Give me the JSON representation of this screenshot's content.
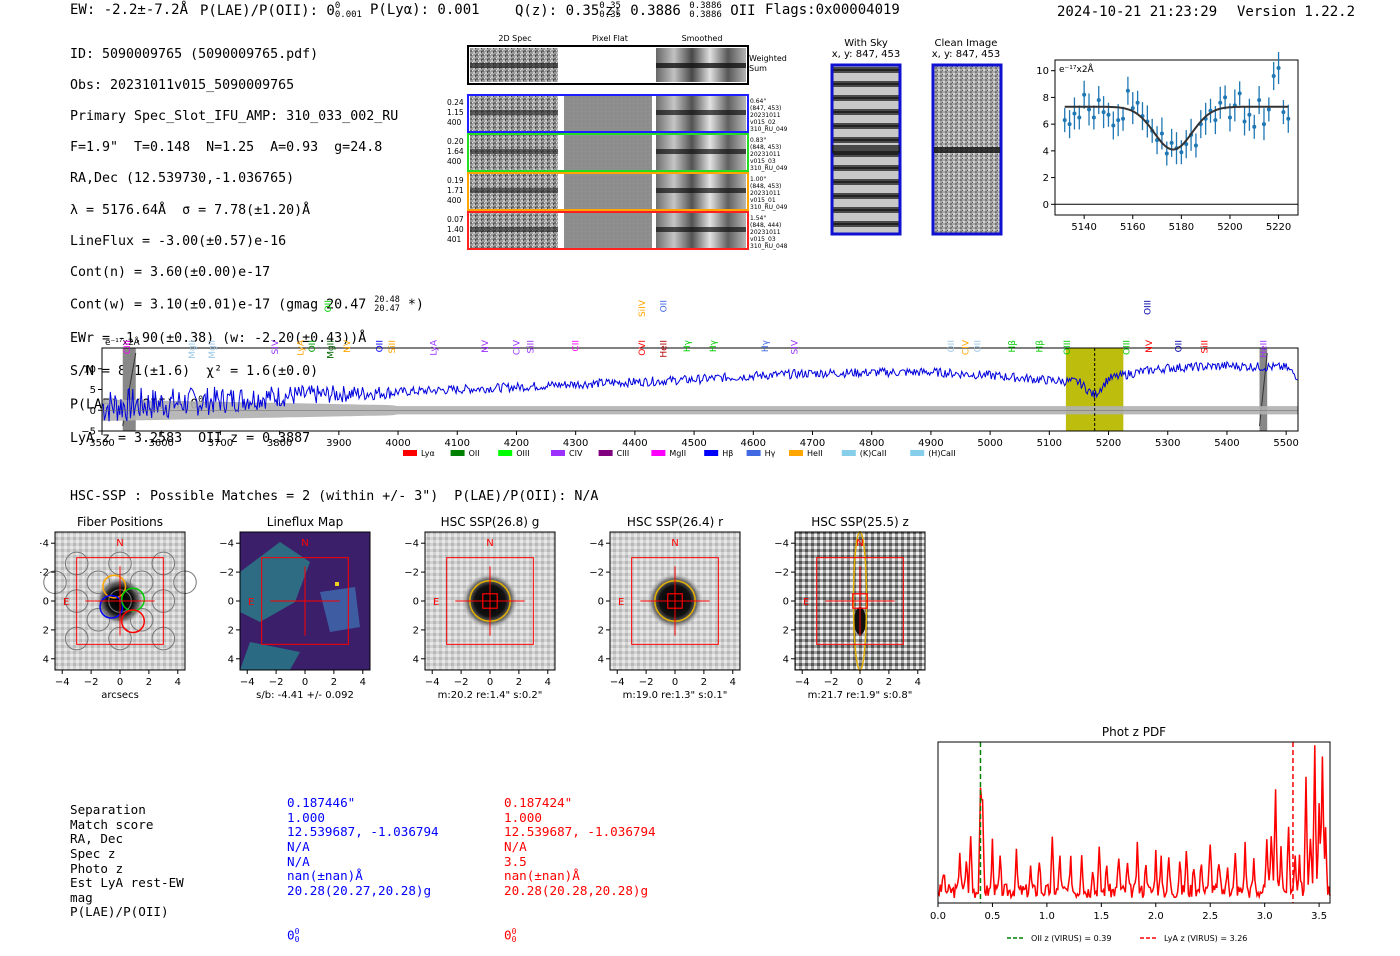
{
  "header": {
    "ew": "EW: -2.2±-7.2Å",
    "plae": "P(LAE)/P(OII): 0",
    "plae_sup": "0",
    "plae_sub": "0.001",
    "plya": "P(Lyα): 0.001",
    "qz": "Q(z): 0.35",
    "qz_sup": "0.35",
    "qz_sub": "0.35",
    "z": "z: 0.3886",
    "z_sup": "0.3886",
    "z_sub": "0.3886",
    "z_line": "OII",
    "flags": "Flags:0x00004019",
    "timestamp": "2024-10-21 21:23:29",
    "version": "Version 1.22.2"
  },
  "info": {
    "id": "ID: 5090009765 (5090009765.pdf)",
    "obs": "Obs: 20231011v015_5090009765",
    "primary": "Primary Spec_Slot_IFU_AMP: 310_033_002_RU",
    "params": "F=1.9\"  T=0.148  N=1.25  A=0.93  g=24.8",
    "radec": "RA,Dec (12.539730,-1.036765)",
    "lambda": "λ = 5176.64Å  σ = 7.78(±1.20)Å",
    "lineflux": "LineFlux = -3.00(±0.57)e-16",
    "contn": "Cont(n) = 3.60(±0.00)e-17",
    "contw": "Cont(w) = 3.10(±0.01)e-17 (gmag 20.47",
    "contw_sup": "20.48",
    "contw_sub": "20.47",
    "contw_end": "*)",
    "ewr": "EWr = -1.90(±0.38) (w: -2.20(±0.43))Å",
    "sn": "S/N = 8.1(±1.6)  χ² = 1.6(±0.0)",
    "plae": "P(LAE)/P(OII): 0",
    "plae_sup": "0",
    "plae_sub": "0",
    "lyaz": "LyA z = 3.2583  OII z = 0.3887"
  },
  "cutouts": {
    "col_2d": "2D Spec",
    "col_flat": "Pixel Flat",
    "col_smooth": "Smoothed",
    "weighted": "Weighted",
    "sum": "Sum",
    "rows": [
      {
        "l1": "0.24",
        "l2": "1.15",
        "l3": "400",
        "r1": "0.64\"",
        "r2": "(847, 453)",
        "r3": "20231011",
        "r4": "v015_02",
        "r5": "310_RU_049",
        "color": "#1f1fff"
      },
      {
        "l1": "0.20",
        "l2": "1.64",
        "l3": "400",
        "r1": "0.83\"",
        "r2": "(848, 453)",
        "r3": "20231011",
        "r4": "v015_03",
        "r5": "310_RU_049",
        "color": "#22dd22"
      },
      {
        "l1": "0.19",
        "l2": "1.71",
        "l3": "400",
        "r1": "1.00\"",
        "r2": "(848, 453)",
        "r3": "20231011",
        "r4": "v015_01",
        "r5": "310_RU_049",
        "color": "#ffa500"
      },
      {
        "l1": "0.07",
        "l2": "1.40",
        "l3": "401",
        "r1": "1.54\"",
        "r2": "(848, 444)",
        "r3": "20231011",
        "r4": "v015_03",
        "r5": "310_RU_048",
        "color": "#ff2020"
      }
    ],
    "withsky_title": "With Sky",
    "withsky_xy": "x, y: 847, 453",
    "clean_title": "Clean Image",
    "clean_xy": "x, y: 847, 453"
  },
  "zoom_chart": {
    "type": "scatter",
    "ylabel": "e⁻¹⁷x2Å",
    "xlim": [
      5128,
      5228
    ],
    "ylim": [
      -0.8,
      10.8
    ],
    "xticks": [
      "5140",
      "5160",
      "5180",
      "5200",
      "5220"
    ],
    "xtick_values": [
      5140,
      5160,
      5180,
      5200,
      5220
    ],
    "yticks": [
      "0",
      "2",
      "4",
      "6",
      "8",
      "10"
    ],
    "ytick_values": [
      0,
      2,
      4,
      6,
      8,
      10
    ],
    "model": {
      "continuum": 7.3,
      "amplitude": 3.2,
      "center": 5176.6,
      "sigma": 7.8
    },
    "x": [
      5132,
      5134,
      5136,
      5138,
      5140,
      5142,
      5144,
      5146,
      5148,
      5150,
      5152,
      5154,
      5156,
      5158,
      5160,
      5162,
      5164,
      5166,
      5168,
      5170,
      5172,
      5174,
      5176,
      5178,
      5180,
      5182,
      5184,
      5186,
      5188,
      5190,
      5192,
      5194,
      5196,
      5198,
      5200,
      5202,
      5204,
      5206,
      5208,
      5210,
      5212,
      5214,
      5216,
      5218,
      5220,
      5222,
      5224
    ],
    "y": [
      6.3,
      6.0,
      6.8,
      6.5,
      8.2,
      7.1,
      6.5,
      7.8,
      6.9,
      6.7,
      5.9,
      6.3,
      6.4,
      8.5,
      7.2,
      7.6,
      6.6,
      6.2,
      5.5,
      4.8,
      5.3,
      3.8,
      4.6,
      4.2,
      3.9,
      4.5,
      5.2,
      4.4,
      6.0,
      6.4,
      7.0,
      6.3,
      7.6,
      8.0,
      6.5,
      7.4,
      8.3,
      6.2,
      6.7,
      5.8,
      7.8,
      6.0,
      7.1,
      9.6,
      10.2,
      6.9,
      6.4
    ]
  },
  "spectrum_chart": {
    "type": "line",
    "ylabel": "e⁻¹⁷x2Å",
    "xlim": [
      3500,
      5520
    ],
    "ylim": [
      -5,
      15
    ],
    "xticks": [
      "3500",
      "3600",
      "3700",
      "3800",
      "3900",
      "4000",
      "4100",
      "4200",
      "4300",
      "4400",
      "4500",
      "4600",
      "4700",
      "4800",
      "4900",
      "5000",
      "5100",
      "5200",
      "5300",
      "5400",
      "5500"
    ],
    "xtick_values": [
      3500,
      3600,
      3700,
      3800,
      3900,
      4000,
      4100,
      4200,
      4300,
      4400,
      4500,
      4600,
      4700,
      4800,
      4900,
      5000,
      5100,
      5200,
      5300,
      5400,
      5500
    ],
    "yticks": [
      "−5",
      "0",
      "5",
      "10"
    ],
    "ytick_values": [
      -5,
      0,
      5,
      10
    ],
    "highlight": [
      5128,
      5225
    ],
    "line_center": 5176.6,
    "masked": [
      [
        3535,
        3557
      ],
      [
        5455,
        5468
      ]
    ],
    "anchor_x": [
      3500,
      3600,
      3700,
      3800,
      3900,
      4000,
      4100,
      4200,
      4300,
      4400,
      4500,
      4600,
      4700,
      4800,
      4900,
      5000,
      5100,
      5150,
      5176,
      5200,
      5250,
      5300,
      5400,
      5500,
      5520
    ],
    "anchor_y": [
      1.0,
      1.6,
      2.4,
      3.4,
      3.9,
      4.4,
      5.0,
      5.6,
      6.3,
      6.8,
      7.4,
      8.3,
      8.9,
      9.1,
      9.2,
      8.4,
      7.2,
      6.8,
      3.5,
      7.6,
      9.2,
      10.2,
      10.7,
      10.3,
      8.0
    ],
    "line_labels": [
      {
        "t": "CIII",
        "x": 3542,
        "row": "mid",
        "c": "#ff00ff"
      },
      {
        "t": "MgII",
        "x": 3652,
        "row": "mid",
        "c": "#9ec9e8"
      },
      {
        "t": "MgII",
        "x": 3686,
        "row": "mid",
        "c": "#9ec9e8"
      },
      {
        "t": "SIV",
        "x": 3792,
        "row": "mid",
        "c": "#9b30ff"
      },
      {
        "t": "LyA",
        "x": 3835,
        "row": "mid",
        "c": "#ffa500"
      },
      {
        "t": "OII",
        "x": 3855,
        "row": "mid",
        "c": "#009900"
      },
      {
        "t": "OII",
        "x": 3882,
        "row": "top",
        "c": "#00cc00"
      },
      {
        "t": "MgII",
        "x": 3886,
        "row": "mid",
        "c": "#006600"
      },
      {
        "t": "NV",
        "x": 3914,
        "row": "mid",
        "c": "#ffa500"
      },
      {
        "t": "OII",
        "x": 3969,
        "row": "mid",
        "c": "#0000ff"
      },
      {
        "t": "SiII",
        "x": 3990,
        "row": "mid",
        "c": "#ffa500"
      },
      {
        "t": "LyA",
        "x": 4060,
        "row": "mid",
        "c": "#9b30ff"
      },
      {
        "t": "NV",
        "x": 4147,
        "row": "mid",
        "c": "#9b30ff"
      },
      {
        "t": "CIV",
        "x": 4200,
        "row": "mid",
        "c": "#9b30ff"
      },
      {
        "t": "SiII",
        "x": 4224,
        "row": "mid",
        "c": "#9b30ff"
      },
      {
        "t": "CII",
        "x": 4300,
        "row": "mid",
        "c": "#ff00ff"
      },
      {
        "t": "SiIV",
        "x": 4412,
        "row": "top",
        "c": "#ffa500"
      },
      {
        "t": "OVI",
        "x": 4412,
        "row": "mid",
        "c": "#ff0000"
      },
      {
        "t": "OII",
        "x": 4448,
        "row": "top",
        "c": "#4169e1"
      },
      {
        "t": "HeII",
        "x": 4448,
        "row": "mid",
        "c": "#b00000"
      },
      {
        "t": "Hγ",
        "x": 4488,
        "row": "mid",
        "c": "#00cc00"
      },
      {
        "t": "Hγ",
        "x": 4532,
        "row": "mid",
        "c": "#00cc00"
      },
      {
        "t": "Hγ",
        "x": 4620,
        "row": "mid",
        "c": "#4169e1"
      },
      {
        "t": "SIV",
        "x": 4670,
        "row": "mid",
        "c": "#9b30ff"
      },
      {
        "t": "OII",
        "x": 4934,
        "row": "mid",
        "c": "#9ec9e8"
      },
      {
        "t": "CIV",
        "x": 4958,
        "row": "mid",
        "c": "#ffa500"
      },
      {
        "t": "OII",
        "x": 4979,
        "row": "mid",
        "c": "#9ec9e8"
      },
      {
        "t": "Hβ",
        "x": 5037,
        "row": "mid",
        "c": "#00cc00"
      },
      {
        "t": "Hβ",
        "x": 5083,
        "row": "mid",
        "c": "#00cc00"
      },
      {
        "t": "OIII",
        "x": 5130,
        "row": "mid",
        "c": "#00cc00"
      },
      {
        "t": "OIII",
        "x": 5230,
        "row": "mid",
        "c": "#00cc00"
      },
      {
        "t": "NV",
        "x": 5268,
        "row": "mid",
        "c": "#ff0000"
      },
      {
        "t": "OIII",
        "x": 5266,
        "row": "top",
        "c": "#0000aa"
      },
      {
        "t": "OII",
        "x": 5318,
        "row": "mid",
        "c": "#0000aa"
      },
      {
        "t": "SiII",
        "x": 5362,
        "row": "mid",
        "c": "#ff0000"
      },
      {
        "t": "HeII",
        "x": 5462,
        "row": "mid",
        "c": "#9b30ff"
      }
    ],
    "legend": [
      {
        "label": "Lyα",
        "color": "#ff0000"
      },
      {
        "label": "OII",
        "color": "#008000"
      },
      {
        "label": "OIII",
        "color": "#00ff00"
      },
      {
        "label": "CIV",
        "color": "#9b30ff"
      },
      {
        "label": "CIII",
        "color": "#800080"
      },
      {
        "label": "MgII",
        "color": "#ff00ff"
      },
      {
        "label": "Hβ",
        "color": "#0000ff"
      },
      {
        "label": "Hγ",
        "color": "#4169e1"
      },
      {
        "label": "HeII",
        "color": "#ffa500"
      },
      {
        "label": "(K)CaII",
        "color": "#87ceeb"
      },
      {
        "label": "(H)CaII",
        "color": "#87ceeb"
      }
    ]
  },
  "hsc": {
    "title": "HSC-SSP : Possible Matches = 2 (within +/- 3\")  P(LAE)/P(OII): N/A",
    "panels": [
      {
        "title": "Fiber Positions",
        "caption": "arcsecs",
        "type": "fiber"
      },
      {
        "title": "Lineflux Map",
        "caption": "s/b: -4.41 +/- 0.092",
        "type": "lineflux"
      },
      {
        "title": "HSC SSP(26.8) g",
        "caption": "m:20.2  re:1.4\"  s:0.2\"",
        "type": "g"
      },
      {
        "title": "HSC SSP(26.4) r",
        "caption": "m:19.0  re:1.3\"  s:0.1\"",
        "type": "r"
      },
      {
        "title": "HSC SSP(25.5) z",
        "caption": "m:21.7  re:1.9\"  s:0.8\"",
        "type": "z"
      }
    ],
    "axis_ticks": [
      "−4",
      "−2",
      "0",
      "2",
      "4"
    ],
    "axis_values": [
      -4,
      -2,
      0,
      2,
      4
    ],
    "north": "N",
    "east": "E"
  },
  "matches": {
    "labels": [
      "Separation",
      "Match score",
      "RA, Dec",
      "Spec z",
      "Photo z",
      "Est LyA rest-EW",
      "mag",
      "P(LAE)/P(OII)"
    ],
    "m1": [
      "0.187446\"",
      "1.000",
      "12.539687, -1.036794",
      "N/A",
      "N/A",
      "nan(±nan)Å",
      "20.28(20.27,20.28)g",
      "0"
    ],
    "m1_sup": "0",
    "m1_sub": "0",
    "m2": [
      "0.187424\"",
      "1.000",
      "12.539687, -1.036794",
      "N/A",
      "3.5",
      "nan(±nan)Å",
      "20.28(20.28,20.28)g",
      "0"
    ],
    "m2_sup": "0",
    "m2_sub": "0"
  },
  "pdf_chart": {
    "type": "line",
    "title": "Phot z PDF",
    "xlim": [
      0,
      3.6
    ],
    "ylim": [
      0,
      1
    ],
    "xticks": [
      "0.0",
      "0.5",
      "1.0",
      "1.5",
      "2.0",
      "2.5",
      "3.0",
      "3.5"
    ],
    "xtick_values": [
      0,
      0.5,
      1.0,
      1.5,
      2.0,
      2.5,
      3.0,
      3.5
    ],
    "oii_z": 0.39,
    "lya_z": 3.26,
    "legend_oii": "OII z (VIRUS) = 0.39",
    "legend_lya": "LyA z (VIRUS) = 3.26",
    "peaks": [
      [
        0.05,
        0.12
      ],
      [
        0.2,
        0.26
      ],
      [
        0.26,
        0.2
      ],
      [
        0.3,
        0.34
      ],
      [
        0.39,
        0.65
      ],
      [
        0.41,
        0.5
      ],
      [
        0.5,
        0.3
      ],
      [
        0.57,
        0.18
      ],
      [
        0.72,
        0.22
      ],
      [
        0.85,
        0.14
      ],
      [
        0.93,
        0.2
      ],
      [
        1.05,
        0.3
      ],
      [
        1.12,
        0.22
      ],
      [
        1.22,
        0.18
      ],
      [
        1.32,
        0.26
      ],
      [
        1.42,
        0.16
      ],
      [
        1.48,
        0.25
      ],
      [
        1.55,
        0.16
      ],
      [
        1.66,
        0.22
      ],
      [
        1.74,
        0.16
      ],
      [
        1.83,
        0.26
      ],
      [
        1.91,
        0.2
      ],
      [
        2.0,
        0.24
      ],
      [
        2.05,
        0.18
      ],
      [
        2.12,
        0.21
      ],
      [
        2.22,
        0.18
      ],
      [
        2.28,
        0.24
      ],
      [
        2.35,
        0.18
      ],
      [
        2.42,
        0.2
      ],
      [
        2.5,
        0.33
      ],
      [
        2.58,
        0.2
      ],
      [
        2.66,
        0.17
      ],
      [
        2.73,
        0.22
      ],
      [
        2.82,
        0.28
      ],
      [
        2.9,
        0.18
      ],
      [
        3.02,
        0.28
      ],
      [
        3.06,
        0.38
      ],
      [
        3.1,
        0.64
      ],
      [
        3.15,
        0.3
      ],
      [
        3.22,
        0.38
      ],
      [
        3.28,
        0.25
      ],
      [
        3.32,
        0.22
      ],
      [
        3.38,
        0.72
      ],
      [
        3.42,
        0.35
      ],
      [
        3.46,
        0.9
      ],
      [
        3.5,
        0.5
      ],
      [
        3.53,
        0.82
      ],
      [
        3.56,
        0.4
      ]
    ]
  }
}
